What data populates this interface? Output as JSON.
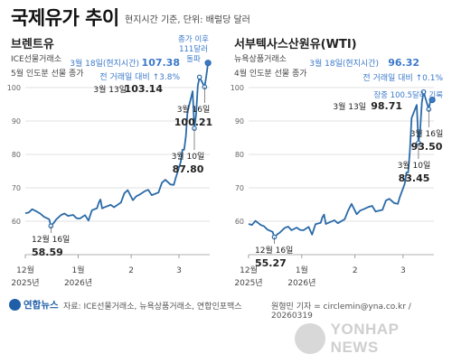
{
  "title": "국제유가 추이",
  "subtitle": "현지시간 기준, 단위: 배럴당 달러",
  "footer": {
    "logo_text": "연합뉴스",
    "source": "자료: ICE선물거래소, 뉴욕상품거래소, 연합인포맥스",
    "credit": "원형민 기자 = circlemin@yna.co.kr / 20260319",
    "watermark": "YONHAP NEWS"
  },
  "colors": {
    "line": "#2a6aa8",
    "highlight": "#3b79c9",
    "grid": "#d9d9d9",
    "text": "#222222"
  },
  "chart_data": [
    {
      "type": "line",
      "title": "브렌트유",
      "subtitle_lines": [
        "ICE선물거래소",
        "5월 인도분 선물 종가"
      ],
      "ylim": [
        50,
        110
      ],
      "y_ticks": [
        60,
        70,
        80,
        90,
        100
      ],
      "xlim": [
        "2025-12-01",
        "2026-03-19"
      ],
      "x_ticks": [
        {
          "x": "2025-12-01",
          "label": [
            "12월",
            "2025년"
          ]
        },
        {
          "x": "2026-01-01",
          "label": [
            "1월",
            "2026년"
          ]
        },
        {
          "x": "2026-02-01",
          "label": [
            "2",
            ""
          ]
        },
        {
          "x": "2026-03-01",
          "label": [
            "3",
            ""
          ]
        }
      ],
      "series": [
        {
          "values": [
            [
              "2025-12-01",
              62.4
            ],
            [
              "2025-12-03",
              62.6
            ],
            [
              "2025-12-05",
              63.6
            ],
            [
              "2025-12-08",
              62.8
            ],
            [
              "2025-12-10",
              62.2
            ],
            [
              "2025-12-12",
              61.3
            ],
            [
              "2025-12-15",
              60.6
            ],
            [
              "2025-12-16",
              58.59
            ],
            [
              "2025-12-18",
              59.7
            ],
            [
              "2025-12-19",
              60.5
            ],
            [
              "2025-12-22",
              61.9
            ],
            [
              "2025-12-24",
              62.3
            ],
            [
              "2025-12-26",
              61.6
            ],
            [
              "2025-12-29",
              61.9
            ],
            [
              "2025-12-31",
              60.9
            ],
            [
              "2026-01-02",
              60.8
            ],
            [
              "2026-01-05",
              61.8
            ],
            [
              "2026-01-07",
              60.2
            ],
            [
              "2026-01-09",
              63.3
            ],
            [
              "2026-01-12",
              63.9
            ],
            [
              "2026-01-13",
              65.5
            ],
            [
              "2026-01-14",
              66.5
            ],
            [
              "2026-01-15",
              63.8
            ],
            [
              "2026-01-16",
              64.1
            ],
            [
              "2026-01-20",
              64.9
            ],
            [
              "2026-01-22",
              64.2
            ],
            [
              "2026-01-26",
              65.6
            ],
            [
              "2026-01-28",
              68.4
            ],
            [
              "2026-01-30",
              69.3
            ],
            [
              "2026-02-02",
              66.3
            ],
            [
              "2026-02-04",
              67.5
            ],
            [
              "2026-02-06",
              68.0
            ],
            [
              "2026-02-09",
              69.0
            ],
            [
              "2026-02-11",
              69.4
            ],
            [
              "2026-02-13",
              67.8
            ],
            [
              "2026-02-17",
              68.6
            ],
            [
              "2026-02-19",
              71.5
            ],
            [
              "2026-02-21",
              72.4
            ],
            [
              "2026-02-24",
              71.0
            ],
            [
              "2026-02-26",
              70.9
            ],
            [
              "2026-02-27",
              72.8
            ],
            [
              "2026-03-02",
              77.7
            ],
            [
              "2026-03-03",
              81.4
            ],
            [
              "2026-03-04",
              81.4
            ],
            [
              "2026-03-05",
              85.4
            ],
            [
              "2026-03-06",
              92.7
            ],
            [
              "2026-03-09",
              98.9
            ],
            [
              "2026-03-10",
              87.8
            ],
            [
              "2026-03-11",
              91.9
            ],
            [
              "2026-03-12",
              100.5
            ],
            [
              "2026-03-13",
              103.14
            ],
            [
              "2026-03-16",
              100.21
            ],
            [
              "2026-03-17",
              103.4
            ],
            [
              "2026-03-18",
              107.38
            ]
          ]
        }
      ],
      "annotations": [
        {
          "x": "2025-12-16",
          "label": "12월 16일",
          "value": "58.59"
        },
        {
          "x": "2026-03-10",
          "label": "3월 10일",
          "value": "87.80"
        },
        {
          "x": "2026-03-13",
          "label": "3월 13일",
          "value": "103.14"
        },
        {
          "x": "2026-03-16",
          "label": "3월 16일",
          "value": "100.21"
        },
        {
          "x": "2026-03-18",
          "label": "3월 18일(현지시간)",
          "value": "107.38",
          "highlight": true,
          "change_label": "전 거래일 대비",
          "change_value": "↑3.8%"
        }
      ],
      "intraday_note": {
        "lines": [
          "종가 이후",
          "111달러",
          "돌파"
        ],
        "y": 111
      }
    },
    {
      "type": "line",
      "title": "서부텍사스산원유(WTI)",
      "subtitle_lines": [
        "뉴욕상품거래소",
        "4월 인도분 선물 종가"
      ],
      "ylim": [
        50,
        110
      ],
      "y_ticks": [
        60,
        70,
        80,
        90,
        100
      ],
      "xlim": [
        "2025-12-01",
        "2026-03-19"
      ],
      "x_ticks": [
        {
          "x": "2025-12-01",
          "label": [
            "12월",
            "2025년"
          ]
        },
        {
          "x": "2026-01-01",
          "label": [
            "1월",
            "2026년"
          ]
        },
        {
          "x": "2026-02-01",
          "label": [
            "2",
            ""
          ]
        },
        {
          "x": "2026-03-01",
          "label": [
            "3",
            ""
          ]
        }
      ],
      "series": [
        {
          "values": [
            [
              "2025-12-01",
              59.2
            ],
            [
              "2025-12-03",
              58.9
            ],
            [
              "2025-12-05",
              60.1
            ],
            [
              "2025-12-08",
              58.9
            ],
            [
              "2025-12-10",
              58.5
            ],
            [
              "2025-12-12",
              57.5
            ],
            [
              "2025-12-15",
              56.8
            ],
            [
              "2025-12-16",
              55.27
            ],
            [
              "2025-12-18",
              56.2
            ],
            [
              "2025-12-19",
              56.5
            ],
            [
              "2025-12-22",
              58.0
            ],
            [
              "2025-12-24",
              58.4
            ],
            [
              "2025-12-26",
              57.3
            ],
            [
              "2025-12-29",
              58.1
            ],
            [
              "2025-12-31",
              57.4
            ],
            [
              "2026-01-02",
              57.3
            ],
            [
              "2026-01-05",
              58.3
            ],
            [
              "2026-01-07",
              56.0
            ],
            [
              "2026-01-09",
              59.1
            ],
            [
              "2026-01-12",
              59.5
            ],
            [
              "2026-01-13",
              61.2
            ],
            [
              "2026-01-14",
              62.0
            ],
            [
              "2026-01-15",
              59.2
            ],
            [
              "2026-01-16",
              59.4
            ],
            [
              "2026-01-20",
              60.3
            ],
            [
              "2026-01-22",
              59.4
            ],
            [
              "2026-01-26",
              60.6
            ],
            [
              "2026-01-28",
              63.2
            ],
            [
              "2026-01-30",
              65.2
            ],
            [
              "2026-02-02",
              62.1
            ],
            [
              "2026-02-04",
              63.2
            ],
            [
              "2026-02-06",
              63.6
            ],
            [
              "2026-02-09",
              64.3
            ],
            [
              "2026-02-11",
              64.6
            ],
            [
              "2026-02-13",
              62.9
            ],
            [
              "2026-02-17",
              63.4
            ],
            [
              "2026-02-19",
              66.2
            ],
            [
              "2026-02-21",
              66.7
            ],
            [
              "2026-02-24",
              65.4
            ],
            [
              "2026-02-26",
              65.2
            ],
            [
              "2026-02-27",
              67.0
            ],
            [
              "2026-03-02",
              71.2
            ],
            [
              "2026-03-03",
              74.6
            ],
            [
              "2026-03-04",
              74.6
            ],
            [
              "2026-03-05",
              81.0
            ],
            [
              "2026-03-06",
              90.9
            ],
            [
              "2026-03-09",
              94.8
            ],
            [
              "2026-03-10",
              83.45
            ],
            [
              "2026-03-11",
              87.3
            ],
            [
              "2026-03-12",
              95.7
            ],
            [
              "2026-03-13",
              98.71
            ],
            [
              "2026-03-16",
              93.5
            ],
            [
              "2026-03-17",
              96.2
            ],
            [
              "2026-03-18",
              96.32
            ]
          ]
        }
      ],
      "annotations": [
        {
          "x": "2025-12-16",
          "label": "12월 16일",
          "value": "55.27"
        },
        {
          "x": "2026-03-10",
          "label": "3월 10일",
          "value": "83.45"
        },
        {
          "x": "2026-03-13",
          "label": "3월 13일",
          "value": "98.71"
        },
        {
          "x": "2026-03-16",
          "label": "3월 16일",
          "value": "93.50"
        },
        {
          "x": "2026-03-18",
          "label": "3월 18일(현지시간)",
          "value": "96.32",
          "highlight": true,
          "change_label": "전 거래일 대비",
          "change_value": "↑0.1%"
        }
      ],
      "intraday_note": {
        "lines": [
          "장중 100.5달러 기록"
        ],
        "y": 100.5
      }
    }
  ]
}
